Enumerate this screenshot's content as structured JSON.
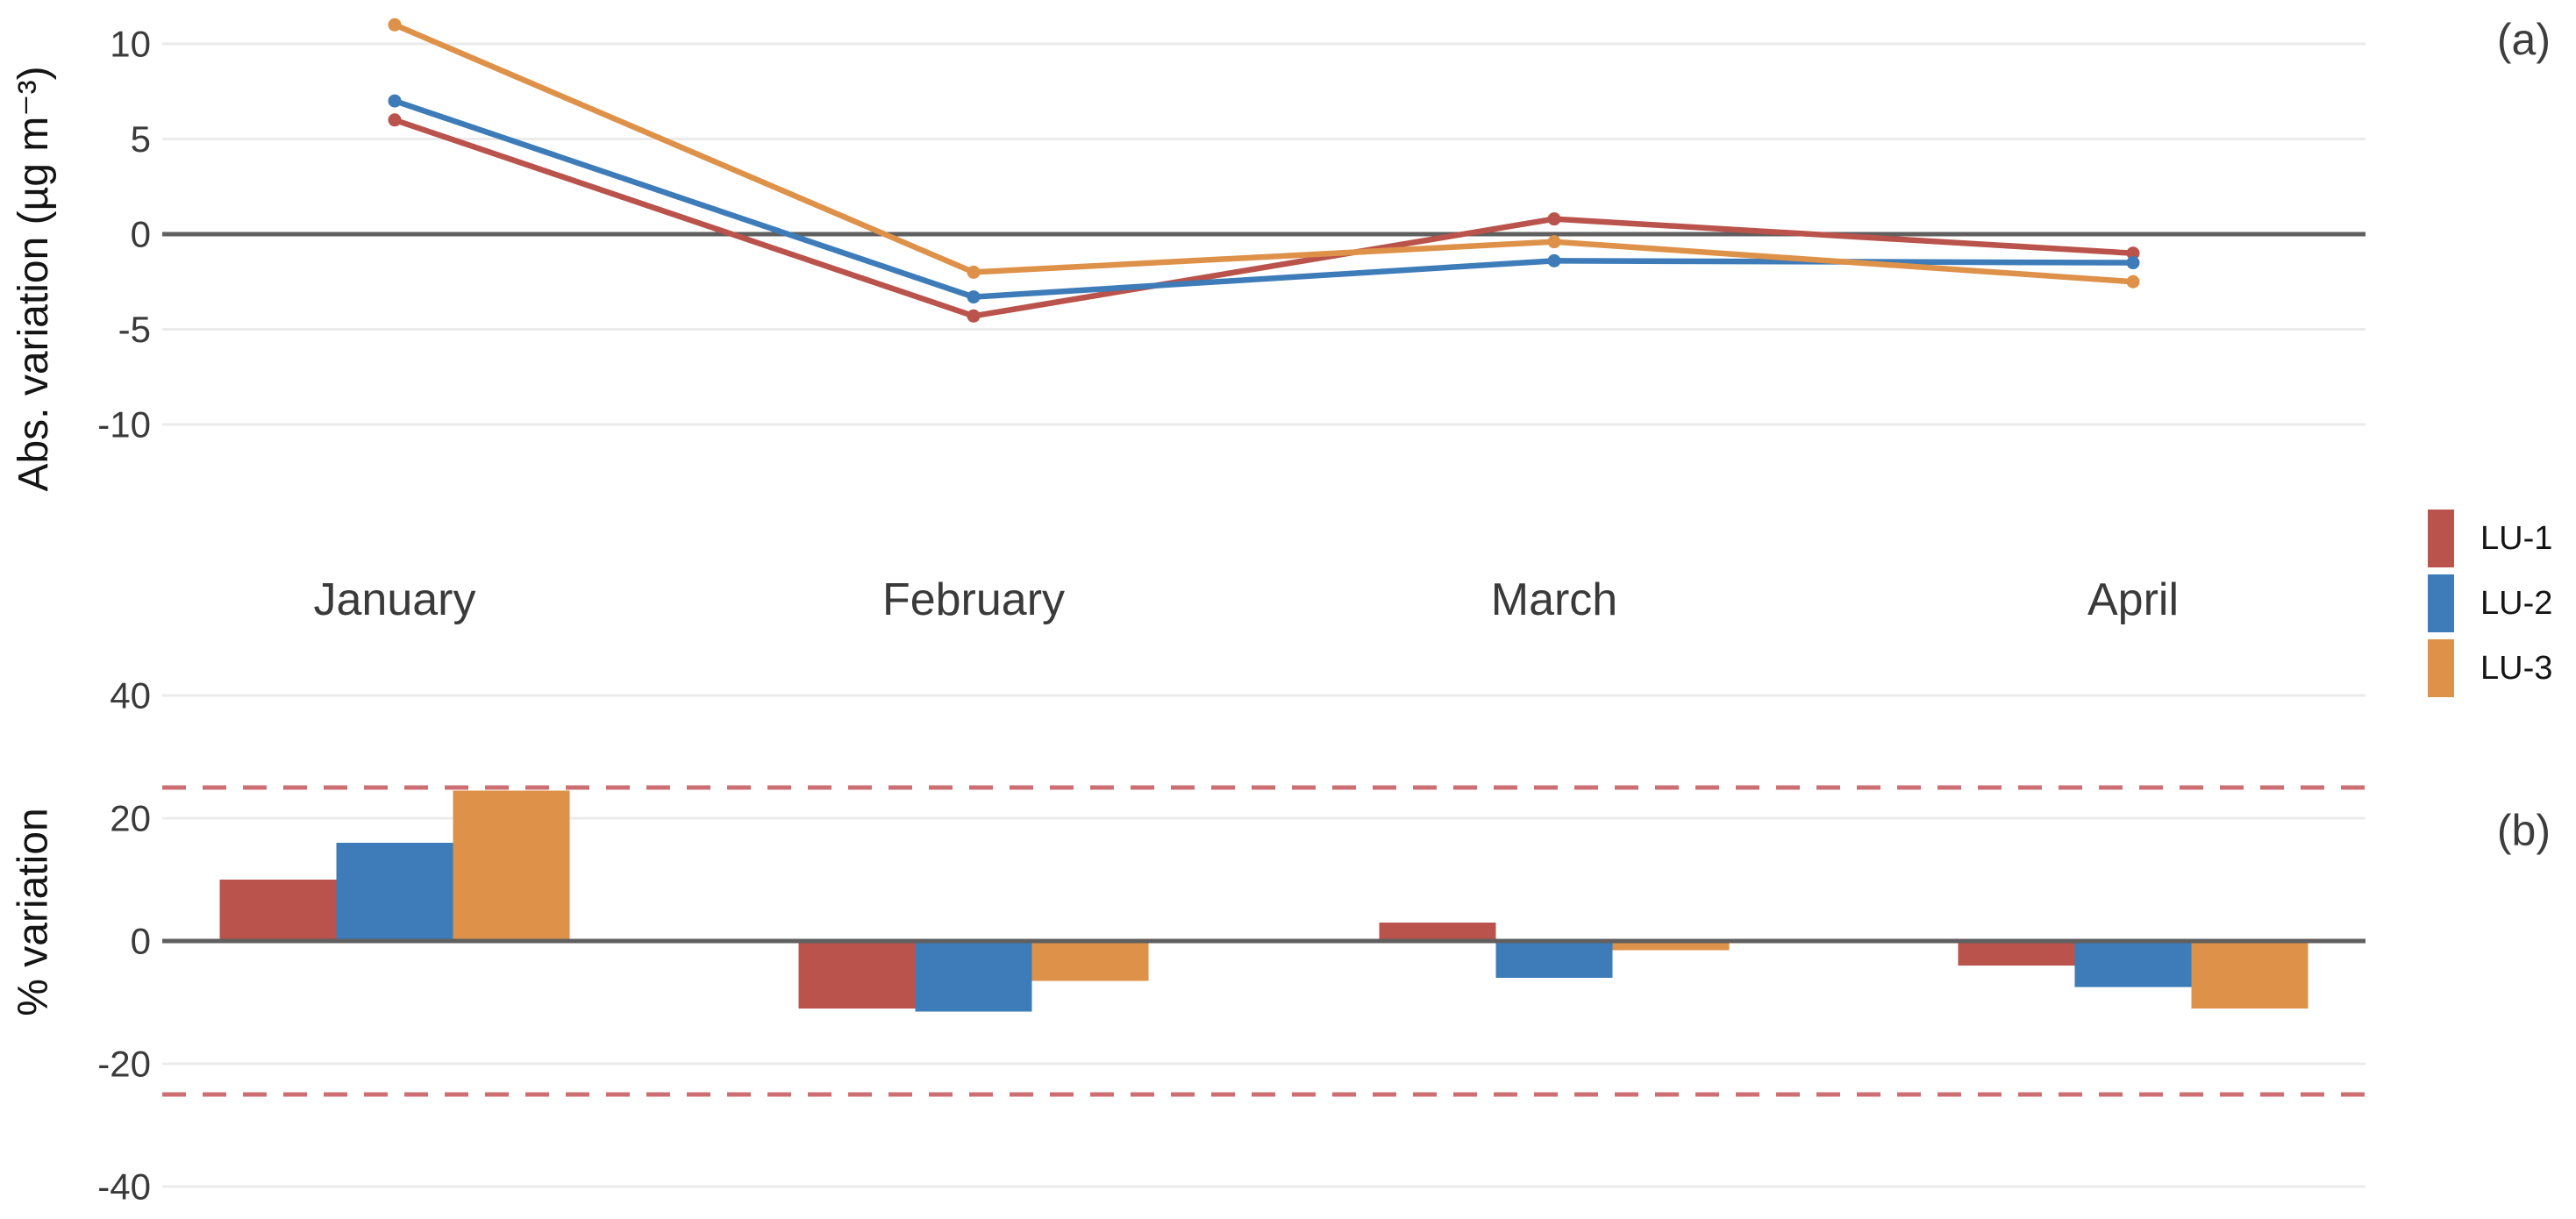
{
  "legend": {
    "items": [
      {
        "label": "LU-1",
        "color": "#b9534b"
      },
      {
        "label": "LU-2",
        "color": "#3d7cb9"
      },
      {
        "label": "LU-3",
        "color": "#de9148"
      }
    ]
  },
  "chart_data": [
    {
      "type": "line",
      "tag": "(a)",
      "ylabel": "Abs. variation (µg m⁻³)",
      "categories": [
        "January",
        "February",
        "March",
        "April"
      ],
      "yticks": [
        10,
        5,
        0,
        -5,
        -10
      ],
      "ylim": [
        -13,
        12
      ],
      "grid": true,
      "zero_line": true,
      "legend_position": "right",
      "series": [
        {
          "name": "LU-1",
          "color": "#b9534b",
          "values": [
            6,
            -4.3,
            0.8,
            -1
          ]
        },
        {
          "name": "LU-2",
          "color": "#3d7cb9",
          "values": [
            7,
            -3.3,
            -1.4,
            -1.5
          ]
        },
        {
          "name": "LU-3",
          "color": "#de9148",
          "values": [
            11,
            -2,
            -0.4,
            -2.5
          ]
        }
      ]
    },
    {
      "type": "bar",
      "tag": "(b)",
      "ylabel": "% variation",
      "categories": [
        "January",
        "February",
        "March",
        "April"
      ],
      "yticks": [
        40,
        20,
        0,
        -20,
        -40
      ],
      "ylim": [
        -45,
        44
      ],
      "grid": true,
      "zero_line": true,
      "thresholds": {
        "values": [
          25,
          -25
        ],
        "style": "dashed",
        "color": "#cd6e73"
      },
      "series": [
        {
          "name": "LU-1",
          "color": "#b9534b",
          "values": [
            10,
            -11,
            3,
            -4
          ]
        },
        {
          "name": "LU-2",
          "color": "#3d7cb9",
          "values": [
            16,
            -11.5,
            -6,
            -7.5
          ]
        },
        {
          "name": "LU-3",
          "color": "#de9148",
          "values": [
            24.5,
            -6.5,
            -1.5,
            -11
          ]
        }
      ]
    }
  ],
  "style": {
    "gridline_color": "#ebebeb",
    "zero_line_color": "#5f5f5f",
    "tick_text_color": "#3a3a3a",
    "month_text_color": "#3a3a3a"
  }
}
